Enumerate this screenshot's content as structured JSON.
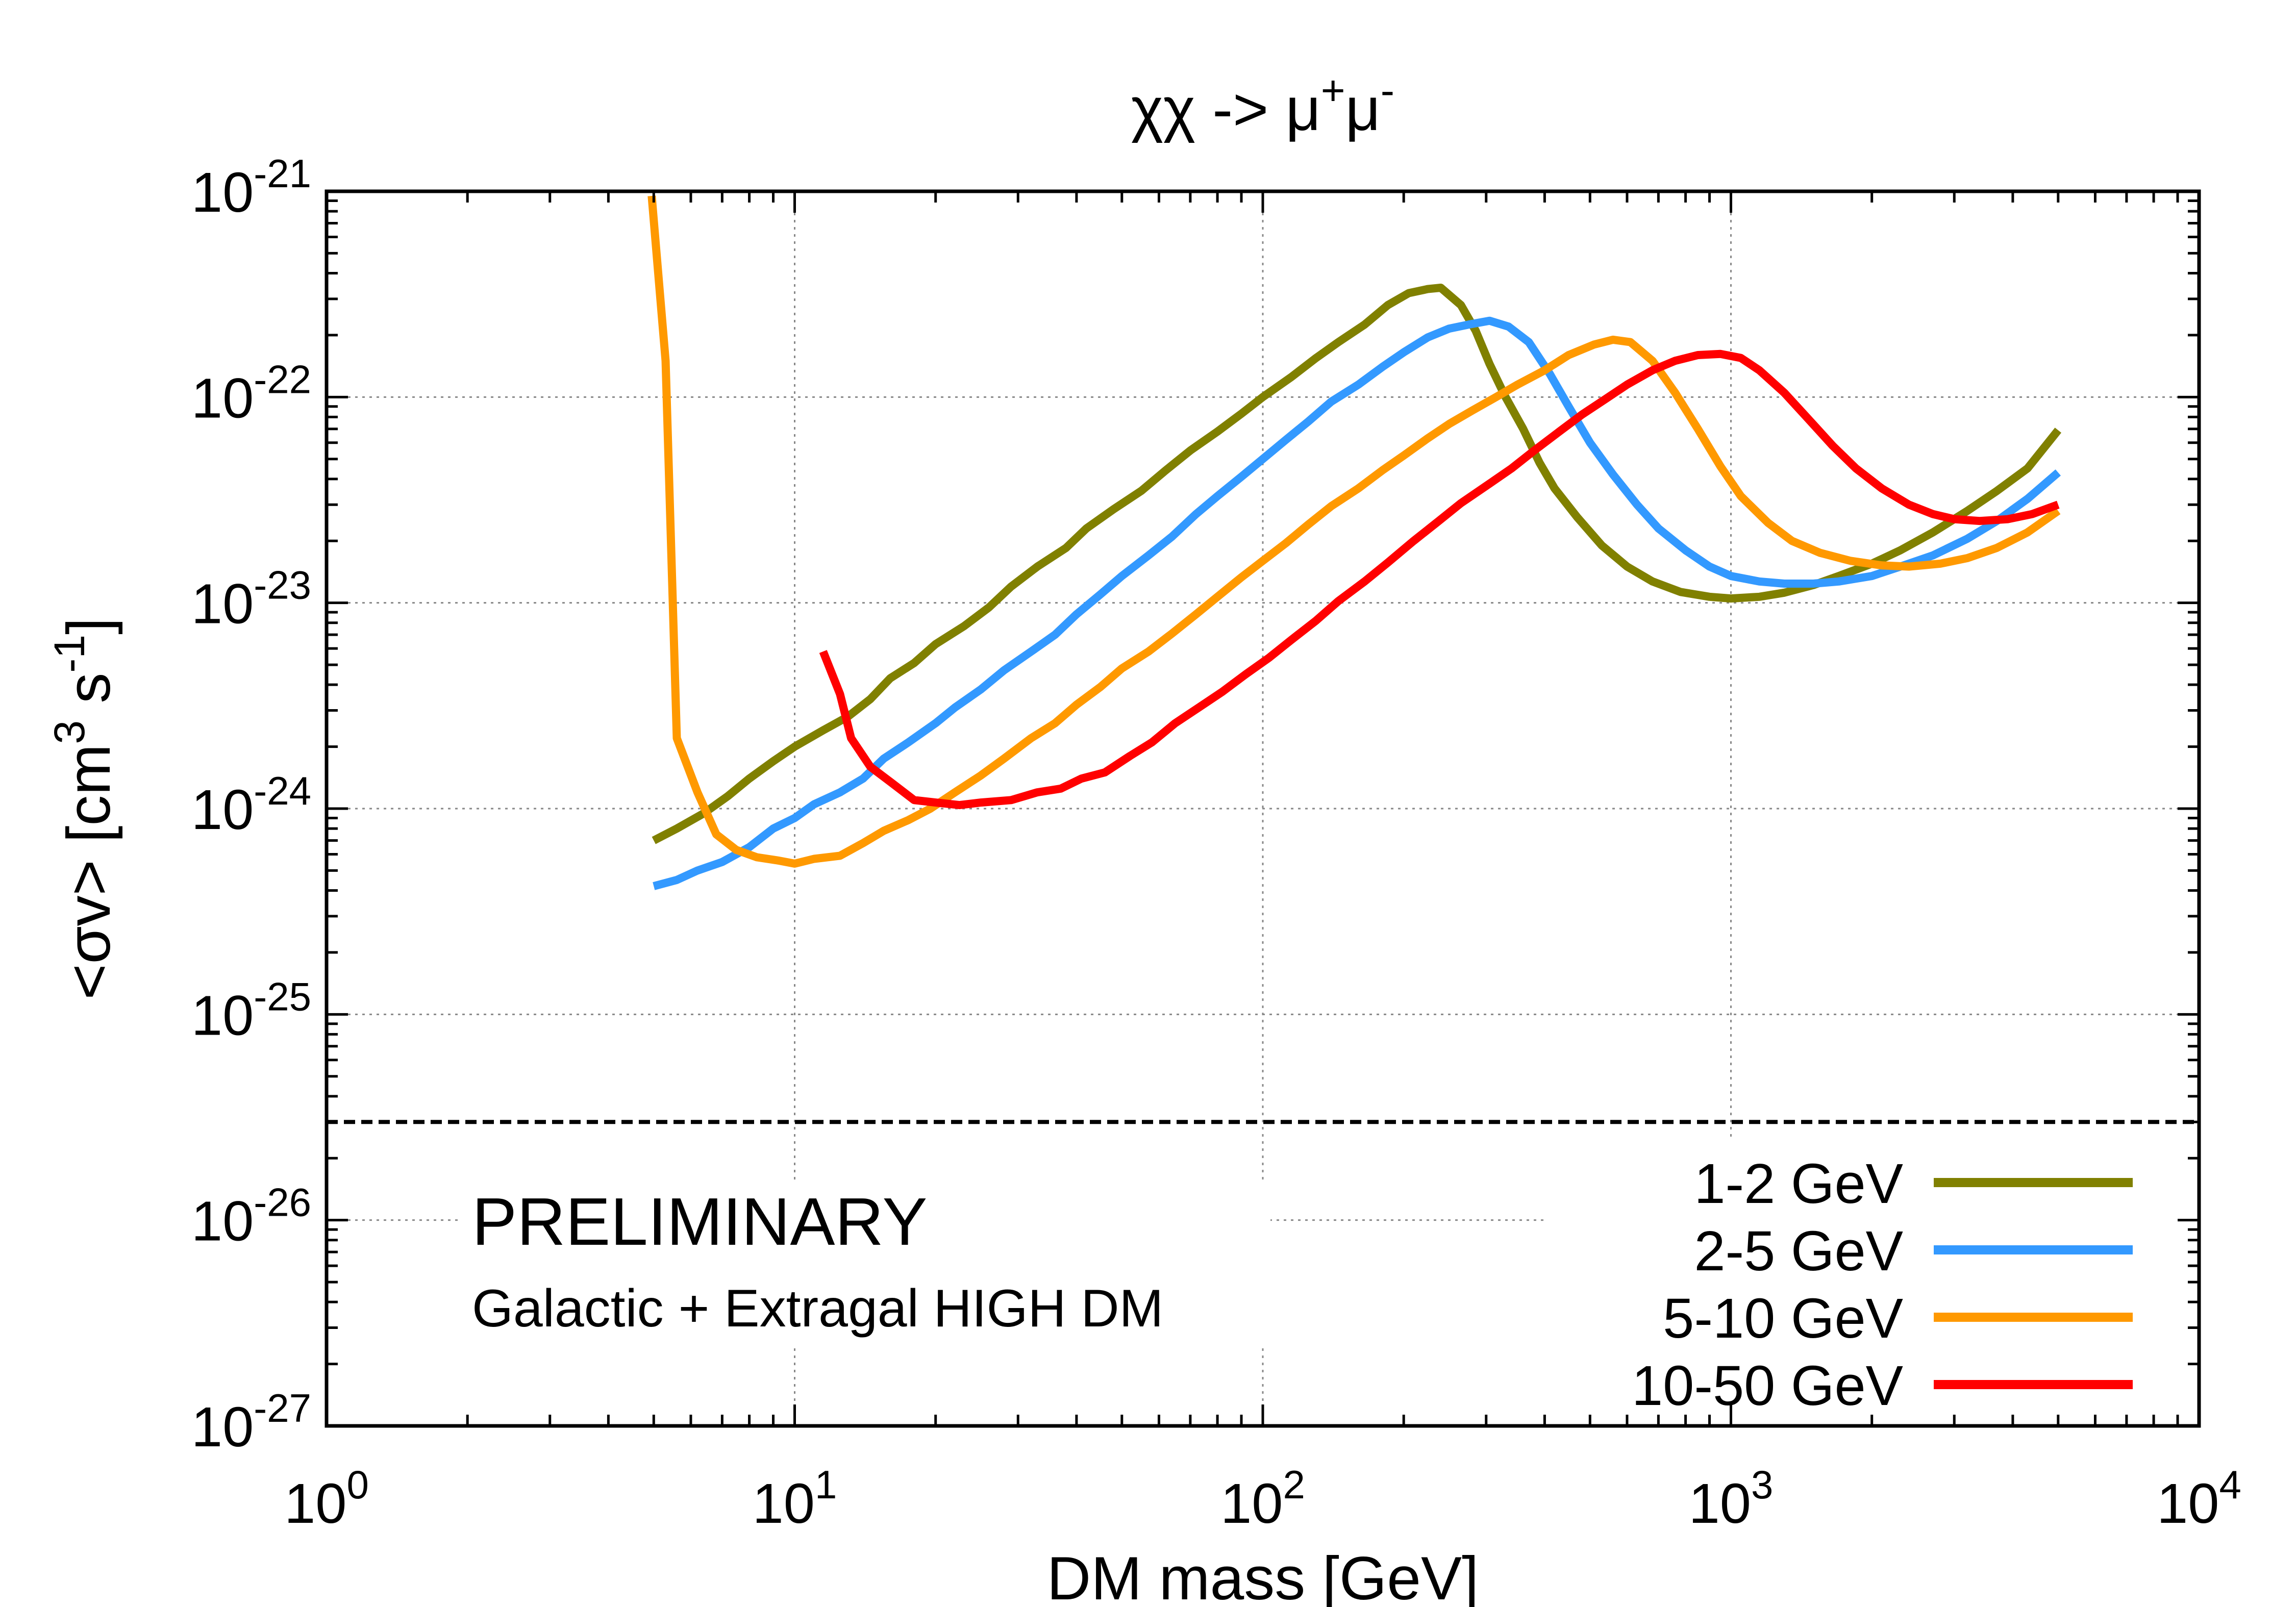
{
  "chart_data": {
    "type": "line",
    "title_text": "χχ -> μ",
    "title_sup1": "+",
    "title_mid": "μ",
    "title_sup2": "-",
    "xlabel": "DM mass [GeV]",
    "ylabel_pre": "<σv> [cm",
    "ylabel_sup1": "3",
    "ylabel_mid": " s",
    "ylabel_sup2": "-1",
    "ylabel_post": "]",
    "x_scale": "log",
    "y_scale": "log",
    "xlim": [
      1,
      10000
    ],
    "ylim": [
      1e-27,
      1e-21
    ],
    "grid": true,
    "legend_position": "bottom-right",
    "x_ticks": [
      {
        "value": 1,
        "base": "10",
        "exp": "0"
      },
      {
        "value": 10,
        "base": "10",
        "exp": "1"
      },
      {
        "value": 100,
        "base": "10",
        "exp": "2"
      },
      {
        "value": 1000,
        "base": "10",
        "exp": "3"
      },
      {
        "value": 10000,
        "base": "10",
        "exp": "4"
      }
    ],
    "y_ticks": [
      {
        "value": 1e-21,
        "base": "10",
        "exp": "-21"
      },
      {
        "value": 1e-22,
        "base": "10",
        "exp": "-22"
      },
      {
        "value": 1e-23,
        "base": "10",
        "exp": "-23"
      },
      {
        "value": 1e-24,
        "base": "10",
        "exp": "-24"
      },
      {
        "value": 1e-25,
        "base": "10",
        "exp": "-25"
      },
      {
        "value": 1e-26,
        "base": "10",
        "exp": "-26"
      },
      {
        "value": 1e-27,
        "base": "10",
        "exp": "-27"
      }
    ],
    "reference_line": {
      "y": 3e-26,
      "style": "dashed",
      "color": "#000000"
    },
    "annotations": [
      {
        "text": "PRELIMINARY",
        "color": "#ff0000"
      },
      {
        "text": "Galactic + Extragal HIGH DM",
        "color": "#000000"
      }
    ],
    "series": [
      {
        "name": "1-2 GeV",
        "color": "#808000",
        "points": [
          [
            5,
            7e-25
          ],
          [
            5.6,
            8e-25
          ],
          [
            6.4,
            9.5e-25
          ],
          [
            7.2,
            1.15e-24
          ],
          [
            8,
            1.4e-24
          ],
          [
            9,
            1.7e-24
          ],
          [
            10,
            2e-24
          ],
          [
            11.5,
            2.4e-24
          ],
          [
            13,
            2.8e-24
          ],
          [
            14.5,
            3.4e-24
          ],
          [
            16,
            4.3e-24
          ],
          [
            18,
            5.1e-24
          ],
          [
            20,
            6.3e-24
          ],
          [
            23,
            7.7e-24
          ],
          [
            26,
            9.5e-24
          ],
          [
            29,
            1.2e-23
          ],
          [
            33,
            1.5e-23
          ],
          [
            38,
            1.85e-23
          ],
          [
            42,
            2.3e-23
          ],
          [
            48,
            2.85e-23
          ],
          [
            55,
            3.5e-23
          ],
          [
            62,
            4.4e-23
          ],
          [
            70,
            5.5e-23
          ],
          [
            80,
            6.8e-23
          ],
          [
            90,
            8.3e-23
          ],
          [
            100,
            1e-22
          ],
          [
            115,
            1.25e-22
          ],
          [
            130,
            1.55e-22
          ],
          [
            145,
            1.85e-22
          ],
          [
            165,
            2.25e-22
          ],
          [
            185,
            2.8e-22
          ],
          [
            205,
            3.2e-22
          ],
          [
            225,
            3.35e-22
          ],
          [
            240,
            3.4e-22
          ],
          [
            265,
            2.8e-22
          ],
          [
            285,
            2.1e-22
          ],
          [
            305,
            1.45e-22
          ],
          [
            330,
            1e-22
          ],
          [
            360,
            7e-23
          ],
          [
            390,
            4.8e-23
          ],
          [
            420,
            3.6e-23
          ],
          [
            470,
            2.6e-23
          ],
          [
            530,
            1.9e-23
          ],
          [
            600,
            1.5e-23
          ],
          [
            680,
            1.27e-23
          ],
          [
            780,
            1.13e-23
          ],
          [
            900,
            1.07e-23
          ],
          [
            1000,
            1.05e-23
          ],
          [
            1150,
            1.07e-23
          ],
          [
            1300,
            1.12e-23
          ],
          [
            1500,
            1.22e-23
          ],
          [
            1700,
            1.35e-23
          ],
          [
            2000,
            1.55e-23
          ],
          [
            2300,
            1.8e-23
          ],
          [
            2700,
            2.2e-23
          ],
          [
            3200,
            2.8e-23
          ],
          [
            3700,
            3.5e-23
          ],
          [
            4300,
            4.5e-23
          ],
          [
            5000,
            6.9e-23
          ]
        ]
      },
      {
        "name": "2-5 GeV",
        "color": "#3399ff",
        "points": [
          [
            5,
            4.2e-25
          ],
          [
            5.6,
            4.5e-25
          ],
          [
            6.2,
            5e-25
          ],
          [
            7,
            5.5e-25
          ],
          [
            8,
            6.5e-25
          ],
          [
            9,
            8e-25
          ],
          [
            10,
            9e-25
          ],
          [
            11,
            1.05e-24
          ],
          [
            12.5,
            1.2e-24
          ],
          [
            14,
            1.4e-24
          ],
          [
            15.5,
            1.75e-24
          ],
          [
            17.5,
            2.1e-24
          ],
          [
            20,
            2.6e-24
          ],
          [
            22,
            3.1e-24
          ],
          [
            25,
            3.8e-24
          ],
          [
            28,
            4.7e-24
          ],
          [
            32,
            5.8e-24
          ],
          [
            36,
            7e-24
          ],
          [
            40,
            8.8e-24
          ],
          [
            45,
            1.1e-23
          ],
          [
            50,
            1.35e-23
          ],
          [
            57,
            1.7e-23
          ],
          [
            64,
            2.1e-23
          ],
          [
            72,
            2.7e-23
          ],
          [
            80,
            3.3e-23
          ],
          [
            90,
            4.1e-23
          ],
          [
            100,
            5e-23
          ],
          [
            112,
            6.2e-23
          ],
          [
            125,
            7.6e-23
          ],
          [
            140,
            9.5e-23
          ],
          [
            160,
            1.15e-22
          ],
          [
            180,
            1.4e-22
          ],
          [
            200,
            1.65e-22
          ],
          [
            225,
            1.95e-22
          ],
          [
            250,
            2.15e-22
          ],
          [
            275,
            2.25e-22
          ],
          [
            305,
            2.35e-22
          ],
          [
            335,
            2.2e-22
          ],
          [
            370,
            1.85e-22
          ],
          [
            410,
            1.3e-22
          ],
          [
            450,
            9e-23
          ],
          [
            500,
            6e-23
          ],
          [
            560,
            4.2e-23
          ],
          [
            630,
            3e-23
          ],
          [
            700,
            2.3e-23
          ],
          [
            800,
            1.8e-23
          ],
          [
            900,
            1.5e-23
          ],
          [
            1000,
            1.35e-23
          ],
          [
            1150,
            1.27e-23
          ],
          [
            1300,
            1.24e-23
          ],
          [
            1500,
            1.24e-23
          ],
          [
            1700,
            1.27e-23
          ],
          [
            2000,
            1.35e-23
          ],
          [
            2300,
            1.5e-23
          ],
          [
            2700,
            1.7e-23
          ],
          [
            3200,
            2.05e-23
          ],
          [
            3700,
            2.5e-23
          ],
          [
            4300,
            3.2e-23
          ],
          [
            5000,
            4.3e-23
          ]
        ]
      },
      {
        "name": "5-10 GeV",
        "color": "#ff9900",
        "points": [
          [
            4.95,
            9.5e-22
          ],
          [
            5.3,
            1.5e-22
          ],
          [
            5.6,
            2.2e-24
          ],
          [
            6.2,
            1.2e-24
          ],
          [
            6.8,
            7.5e-25
          ],
          [
            7.5,
            6.3e-25
          ],
          [
            8.3,
            5.8e-25
          ],
          [
            9.2,
            5.6e-25
          ],
          [
            10,
            5.4e-25
          ],
          [
            11,
            5.7e-25
          ],
          [
            12.5,
            5.9e-25
          ],
          [
            14,
            6.8e-25
          ],
          [
            15.5,
            7.8e-25
          ],
          [
            17.5,
            8.8e-25
          ],
          [
            19.5,
            1e-24
          ],
          [
            22,
            1.2e-24
          ],
          [
            25,
            1.45e-24
          ],
          [
            28,
            1.75e-24
          ],
          [
            32,
            2.2e-24
          ],
          [
            36,
            2.6e-24
          ],
          [
            40,
            3.2e-24
          ],
          [
            45,
            3.9e-24
          ],
          [
            50,
            4.8e-24
          ],
          [
            57,
            5.8e-24
          ],
          [
            64,
            7.1e-24
          ],
          [
            72,
            8.8e-24
          ],
          [
            80,
            1.07e-23
          ],
          [
            90,
            1.33e-23
          ],
          [
            100,
            1.6e-23
          ],
          [
            112,
            1.95e-23
          ],
          [
            125,
            2.4e-23
          ],
          [
            140,
            2.95e-23
          ],
          [
            160,
            3.6e-23
          ],
          [
            180,
            4.4e-23
          ],
          [
            200,
            5.2e-23
          ],
          [
            225,
            6.3e-23
          ],
          [
            250,
            7.4e-23
          ],
          [
            280,
            8.6e-23
          ],
          [
            315,
            1e-22
          ],
          [
            350,
            1.15e-22
          ],
          [
            400,
            1.35e-22
          ],
          [
            450,
            1.6e-22
          ],
          [
            510,
            1.8e-22
          ],
          [
            560,
            1.9e-22
          ],
          [
            610,
            1.85e-22
          ],
          [
            680,
            1.5e-22
          ],
          [
            760,
            1.05e-22
          ],
          [
            850,
            7e-23
          ],
          [
            950,
            4.6e-23
          ],
          [
            1050,
            3.3e-23
          ],
          [
            1200,
            2.45e-23
          ],
          [
            1350,
            2e-23
          ],
          [
            1550,
            1.75e-23
          ],
          [
            1800,
            1.6e-23
          ],
          [
            2100,
            1.52e-23
          ],
          [
            2400,
            1.5e-23
          ],
          [
            2800,
            1.55e-23
          ],
          [
            3200,
            1.65e-23
          ],
          [
            3700,
            1.85e-23
          ],
          [
            4300,
            2.2e-23
          ],
          [
            5000,
            2.8e-23
          ]
        ]
      },
      {
        "name": "10-50 GeV",
        "color": "#ff0000",
        "points": [
          [
            11.5,
            5.8e-24
          ],
          [
            12.5,
            3.6e-24
          ],
          [
            13.2,
            2.2e-24
          ],
          [
            14.5,
            1.6e-24
          ],
          [
            16,
            1.35e-24
          ],
          [
            18,
            1.1e-24
          ],
          [
            20,
            1.07e-24
          ],
          [
            22.5,
            1.04e-24
          ],
          [
            25,
            1.07e-24
          ],
          [
            29,
            1.1e-24
          ],
          [
            33,
            1.2e-24
          ],
          [
            37,
            1.25e-24
          ],
          [
            41,
            1.4e-24
          ],
          [
            46,
            1.5e-24
          ],
          [
            52,
            1.8e-24
          ],
          [
            58,
            2.1e-24
          ],
          [
            65,
            2.6e-24
          ],
          [
            73,
            3.1e-24
          ],
          [
            82,
            3.7e-24
          ],
          [
            92,
            4.5e-24
          ],
          [
            103,
            5.4e-24
          ],
          [
            115,
            6.6e-24
          ],
          [
            130,
            8.2e-24
          ],
          [
            145,
            1.02e-23
          ],
          [
            165,
            1.27e-23
          ],
          [
            185,
            1.57e-23
          ],
          [
            210,
            2e-23
          ],
          [
            235,
            2.45e-23
          ],
          [
            265,
            3.05e-23
          ],
          [
            300,
            3.7e-23
          ],
          [
            340,
            4.5e-23
          ],
          [
            380,
            5.5e-23
          ],
          [
            430,
            6.8e-23
          ],
          [
            480,
            8.2e-23
          ],
          [
            540,
            9.8e-23
          ],
          [
            600,
            1.15e-22
          ],
          [
            680,
            1.35e-22
          ],
          [
            760,
            1.5e-22
          ],
          [
            850,
            1.6e-22
          ],
          [
            950,
            1.62e-22
          ],
          [
            1050,
            1.55e-22
          ],
          [
            1150,
            1.35e-22
          ],
          [
            1300,
            1.05e-22
          ],
          [
            1450,
            8e-23
          ],
          [
            1650,
            5.8e-23
          ],
          [
            1850,
            4.5e-23
          ],
          [
            2100,
            3.6e-23
          ],
          [
            2400,
            3e-23
          ],
          [
            2700,
            2.7e-23
          ],
          [
            3000,
            2.55e-23
          ],
          [
            3400,
            2.5e-23
          ],
          [
            3900,
            2.55e-23
          ],
          [
            4400,
            2.7e-23
          ],
          [
            5000,
            3e-23
          ]
        ]
      }
    ]
  }
}
